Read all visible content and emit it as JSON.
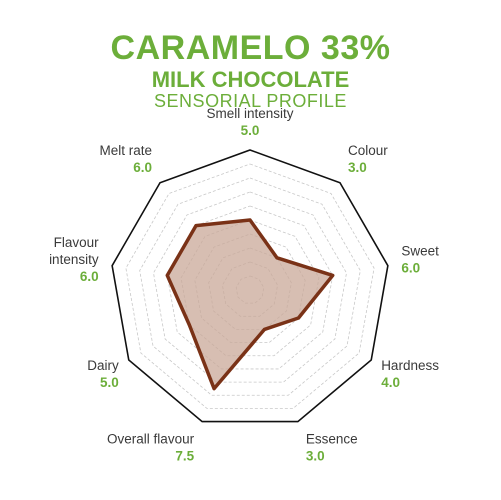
{
  "header": {
    "title": "CARAMELO 33%",
    "subtitle": "MILK CHOCOLATE",
    "subsubtitle": "SENSORIAL PROFILE"
  },
  "colors": {
    "title": "#6cae3a",
    "value": "#6cae3a",
    "label": "#3a3a3a",
    "series_stroke": "#7a3217",
    "series_fill": "#c9a898",
    "grid": "#c8c8c8",
    "outline": "#111111"
  },
  "chart_data": {
    "type": "radar",
    "title": "CARAMELO 33%",
    "rlim": [
      0,
      10
    ],
    "grid_levels": 10,
    "grid": true,
    "axes": [
      {
        "name": [
          "Smell intensity"
        ],
        "value_label": "5.0",
        "value": 5.0
      },
      {
        "name": [
          "Colour"
        ],
        "value_label": "3.0",
        "value": 3.0
      },
      {
        "name": [
          "Sweet"
        ],
        "value_label": "6.0",
        "value": 6.0
      },
      {
        "name": [
          "Hardness"
        ],
        "value_label": "4.0",
        "value": 4.0
      },
      {
        "name": [
          "Essence"
        ],
        "value_label": "3.0",
        "value": 3.0
      },
      {
        "name": [
          "Overall flavour"
        ],
        "value_label": "7.5",
        "value": 7.5
      },
      {
        "name": [
          "Dairy"
        ],
        "value_label": "5.0",
        "value": 5.0
      },
      {
        "name": [
          "Flavour",
          "intensity"
        ],
        "value_label": "6.0",
        "value": 6.0
      },
      {
        "name": [
          "Melt rate"
        ],
        "value_label": "6.0",
        "value": 6.0
      }
    ]
  }
}
